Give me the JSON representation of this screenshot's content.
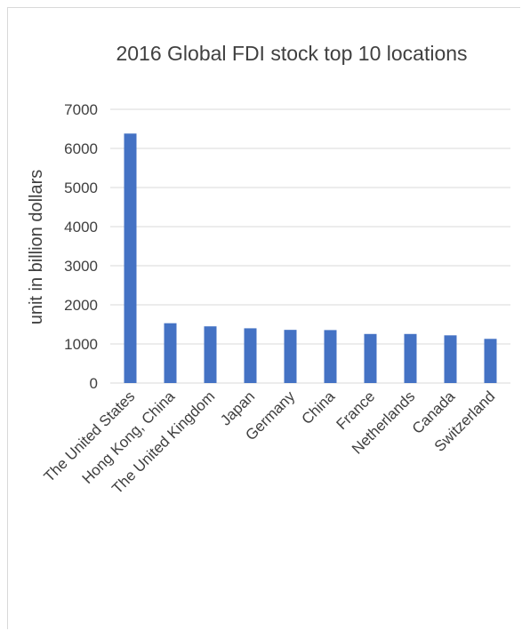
{
  "chart_data": {
    "type": "bar",
    "title": "2016 Global FDI stock top 10 locations",
    "xlabel": "",
    "ylabel": "unit in billion dollars",
    "ylim": [
      0,
      7000
    ],
    "yticks": [
      0,
      1000,
      2000,
      3000,
      4000,
      5000,
      6000,
      7000
    ],
    "grid": true,
    "legend": "none",
    "bar_color": "#4472c4",
    "categories": [
      "The United States",
      "Hong Kong, China",
      "The United Kingdom",
      "Japan",
      "Germany",
      "China",
      "France",
      "Netherlands",
      "Canada",
      "Switzerland"
    ],
    "values": [
      6380,
      1530,
      1450,
      1400,
      1360,
      1355,
      1255,
      1255,
      1220,
      1130
    ]
  }
}
